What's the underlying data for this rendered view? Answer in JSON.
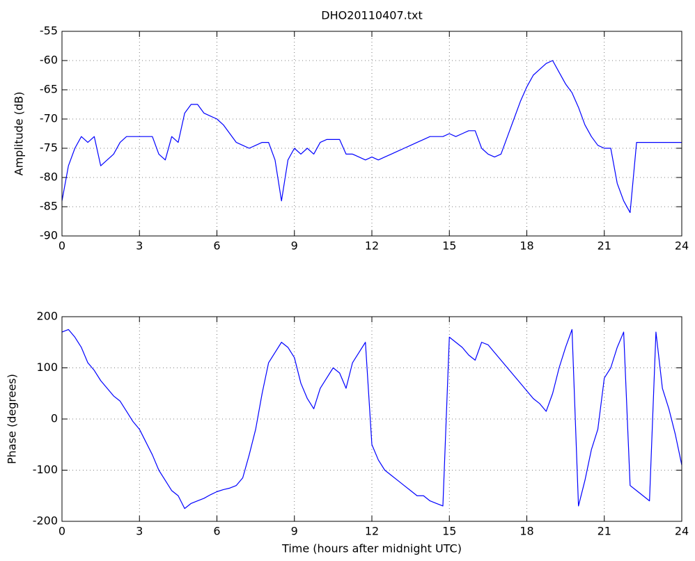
{
  "chart_data": [
    {
      "type": "line",
      "title": "DHO20110407.txt",
      "y_label": "Amplitude (dB)",
      "grid": true,
      "x": [
        0,
        0.25,
        0.5,
        0.75,
        1,
        1.25,
        1.5,
        1.75,
        2,
        2.25,
        2.5,
        2.75,
        3,
        3.25,
        3.5,
        3.75,
        4,
        4.25,
        4.5,
        4.75,
        5,
        5.25,
        5.5,
        5.75,
        6,
        6.25,
        6.5,
        6.75,
        7,
        7.25,
        7.5,
        7.75,
        8,
        8.25,
        8.5,
        8.75,
        9,
        9.25,
        9.5,
        9.75,
        10,
        10.25,
        10.5,
        10.75,
        11,
        11.25,
        11.5,
        11.75,
        12,
        12.25,
        12.5,
        12.75,
        13,
        13.25,
        13.5,
        13.75,
        14,
        14.25,
        14.5,
        14.75,
        15,
        15.25,
        15.5,
        15.75,
        16,
        16.25,
        16.5,
        16.75,
        17,
        17.25,
        17.5,
        17.75,
        18,
        18.25,
        18.5,
        18.75,
        19,
        19.25,
        19.5,
        19.75,
        20,
        20.25,
        20.5,
        20.75,
        21,
        21.25,
        21.5,
        21.75,
        22,
        22.25,
        22.5,
        22.75,
        23,
        23.25,
        23.5,
        23.75,
        24
      ],
      "series": [
        {
          "name": "Amplitude",
          "color": "#0000ff",
          "values": [
            -84,
            -78,
            -75,
            -73,
            -74,
            -73,
            -78,
            -77,
            -76,
            -74,
            -73,
            -73,
            -73,
            -73,
            -73,
            -76,
            -77,
            -73,
            -74,
            -69,
            -67.5,
            -67.5,
            -69,
            -69.5,
            -70,
            -71,
            -72.5,
            -74,
            -74.5,
            -75,
            -74.5,
            -74,
            -74,
            -77,
            -84,
            -77,
            -75,
            -76,
            -75,
            -76,
            -74,
            -73.5,
            -73.5,
            -73.5,
            -76,
            -76,
            -76.5,
            -77,
            -76.5,
            -77,
            -76.5,
            -76,
            -75.5,
            -75,
            -74.5,
            -74,
            -73.5,
            -73,
            -73,
            -73,
            -72.5,
            -73,
            -72.5,
            -72,
            -72,
            -75,
            -76,
            -76.5,
            -76,
            -73,
            -70,
            -67,
            -64.5,
            -62.5,
            -61.5,
            -60.5,
            -60,
            -62,
            -64,
            -65.5,
            -68,
            -71,
            -73,
            -74.5,
            -75,
            -75,
            -81,
            -84,
            -86,
            -74,
            -74,
            -74,
            -74,
            -74,
            -74,
            -74,
            -74
          ]
        }
      ],
      "xlim": [
        0,
        24
      ],
      "xticks": [
        0,
        3,
        6,
        9,
        12,
        15,
        18,
        21,
        24
      ],
      "ylim": [
        -90,
        -55
      ],
      "yticks": [
        -90,
        -85,
        -80,
        -75,
        -70,
        -65,
        -60,
        -55
      ]
    },
    {
      "type": "line",
      "x_label": "Time (hours after midnight UTC)",
      "y_label": "Phase (degrees)",
      "grid": true,
      "x": [
        0,
        0.25,
        0.5,
        0.75,
        1,
        1.25,
        1.5,
        1.75,
        2,
        2.25,
        2.5,
        2.75,
        3,
        3.25,
        3.5,
        3.75,
        4,
        4.25,
        4.5,
        4.75,
        5,
        5.25,
        5.5,
        5.75,
        6,
        6.25,
        6.5,
        6.75,
        7,
        7.25,
        7.5,
        7.75,
        8,
        8.25,
        8.5,
        8.75,
        9,
        9.25,
        9.5,
        9.75,
        10,
        10.25,
        10.5,
        10.75,
        11,
        11.25,
        11.5,
        11.75,
        12,
        12.25,
        12.5,
        12.75,
        13,
        13.25,
        13.5,
        13.75,
        14,
        14.25,
        14.5,
        14.75,
        15,
        15.25,
        15.5,
        15.75,
        16,
        16.25,
        16.5,
        16.75,
        17,
        17.25,
        17.5,
        17.75,
        18,
        18.25,
        18.5,
        18.75,
        19,
        19.25,
        19.5,
        19.75,
        20,
        20.25,
        20.5,
        20.75,
        21,
        21.25,
        21.5,
        21.75,
        22,
        22.25,
        22.5,
        22.75,
        23,
        23.25,
        23.5,
        23.75,
        24
      ],
      "series": [
        {
          "name": "Phase",
          "color": "#0000ff",
          "values": [
            170,
            175,
            160,
            140,
            110,
            95,
            75,
            60,
            45,
            35,
            15,
            -5,
            -20,
            -45,
            -70,
            -100,
            -120,
            -140,
            -150,
            -175,
            -165,
            -160,
            -155,
            -148,
            -142,
            -138,
            -135,
            -130,
            -115,
            -70,
            -20,
            50,
            110,
            130,
            150,
            140,
            120,
            70,
            40,
            20,
            60,
            80,
            100,
            90,
            60,
            110,
            130,
            150,
            -50,
            -80,
            -100,
            -110,
            -120,
            -130,
            -140,
            -150,
            -150,
            -160,
            -165,
            -170,
            160,
            150,
            140,
            125,
            115,
            150,
            145,
            130,
            115,
            100,
            85,
            70,
            55,
            40,
            30,
            15,
            50,
            100,
            140,
            175,
            -170,
            -120,
            -60,
            -20,
            80,
            100,
            140,
            170,
            -130,
            -140,
            -150,
            -160,
            170,
            60,
            20,
            -30,
            -90
          ]
        }
      ],
      "xlim": [
        0,
        24
      ],
      "xticks": [
        0,
        3,
        6,
        9,
        12,
        15,
        18,
        21,
        24
      ],
      "ylim": [
        -200,
        200
      ],
      "yticks": [
        -200,
        -100,
        0,
        100,
        200
      ]
    }
  ]
}
